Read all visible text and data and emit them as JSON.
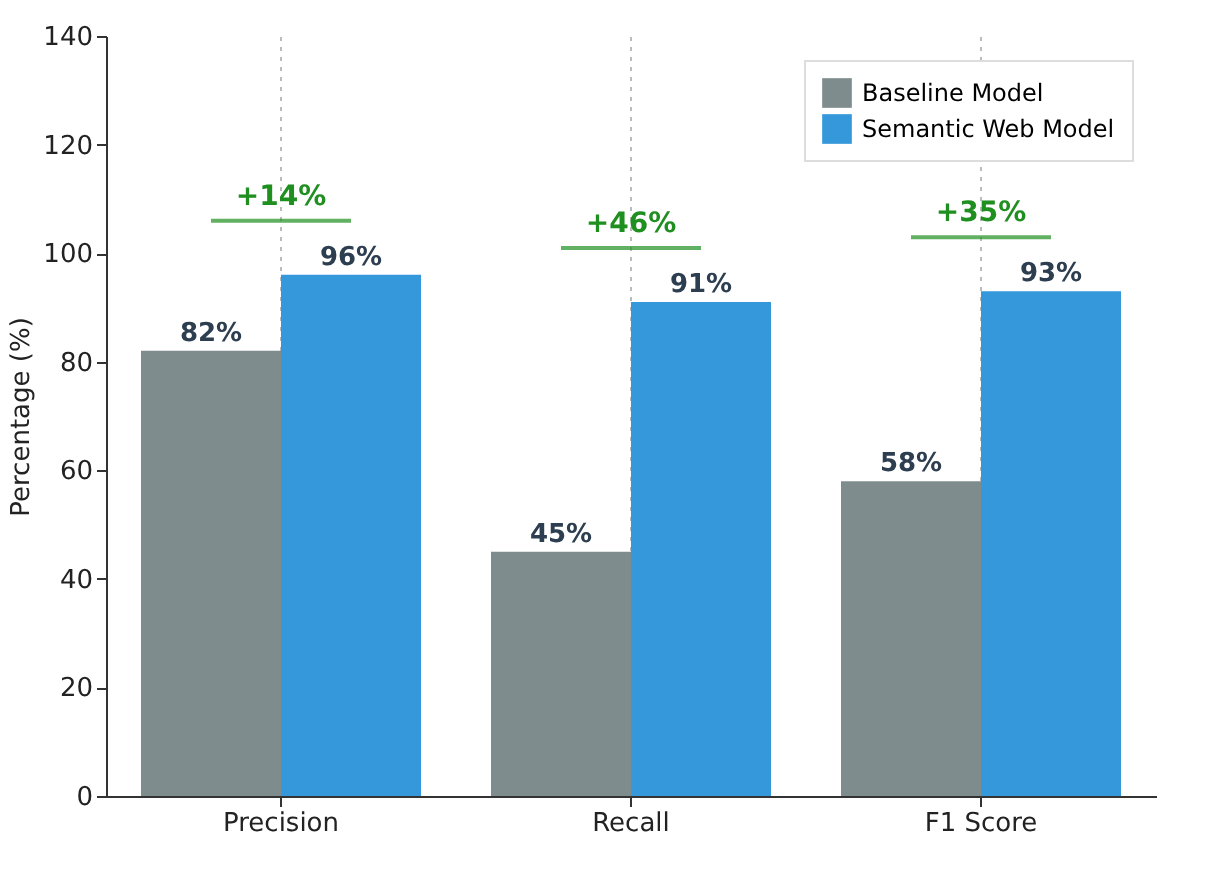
{
  "chart_data": {
    "type": "bar",
    "ylabel": "Percentage (%)",
    "categories": [
      "Precision",
      "Recall",
      "F1 Score"
    ],
    "series": [
      {
        "name": "Baseline Model",
        "color": "#7f8c8d",
        "values": [
          82,
          45,
          58
        ],
        "value_labels": [
          "82%",
          "45%",
          "58%"
        ]
      },
      {
        "name": "Semantic Web Model",
        "color": "#3498db",
        "values": [
          96,
          91,
          93
        ],
        "value_labels": [
          "96%",
          "91%",
          "93%"
        ]
      }
    ],
    "ylim": [
      0,
      140
    ],
    "yticks": [
      0,
      20,
      40,
      60,
      80,
      100,
      120,
      140
    ],
    "grid": "x",
    "legend": "top right",
    "annotations": [
      "+14%",
      "+46%",
      "+35%"
    ]
  }
}
